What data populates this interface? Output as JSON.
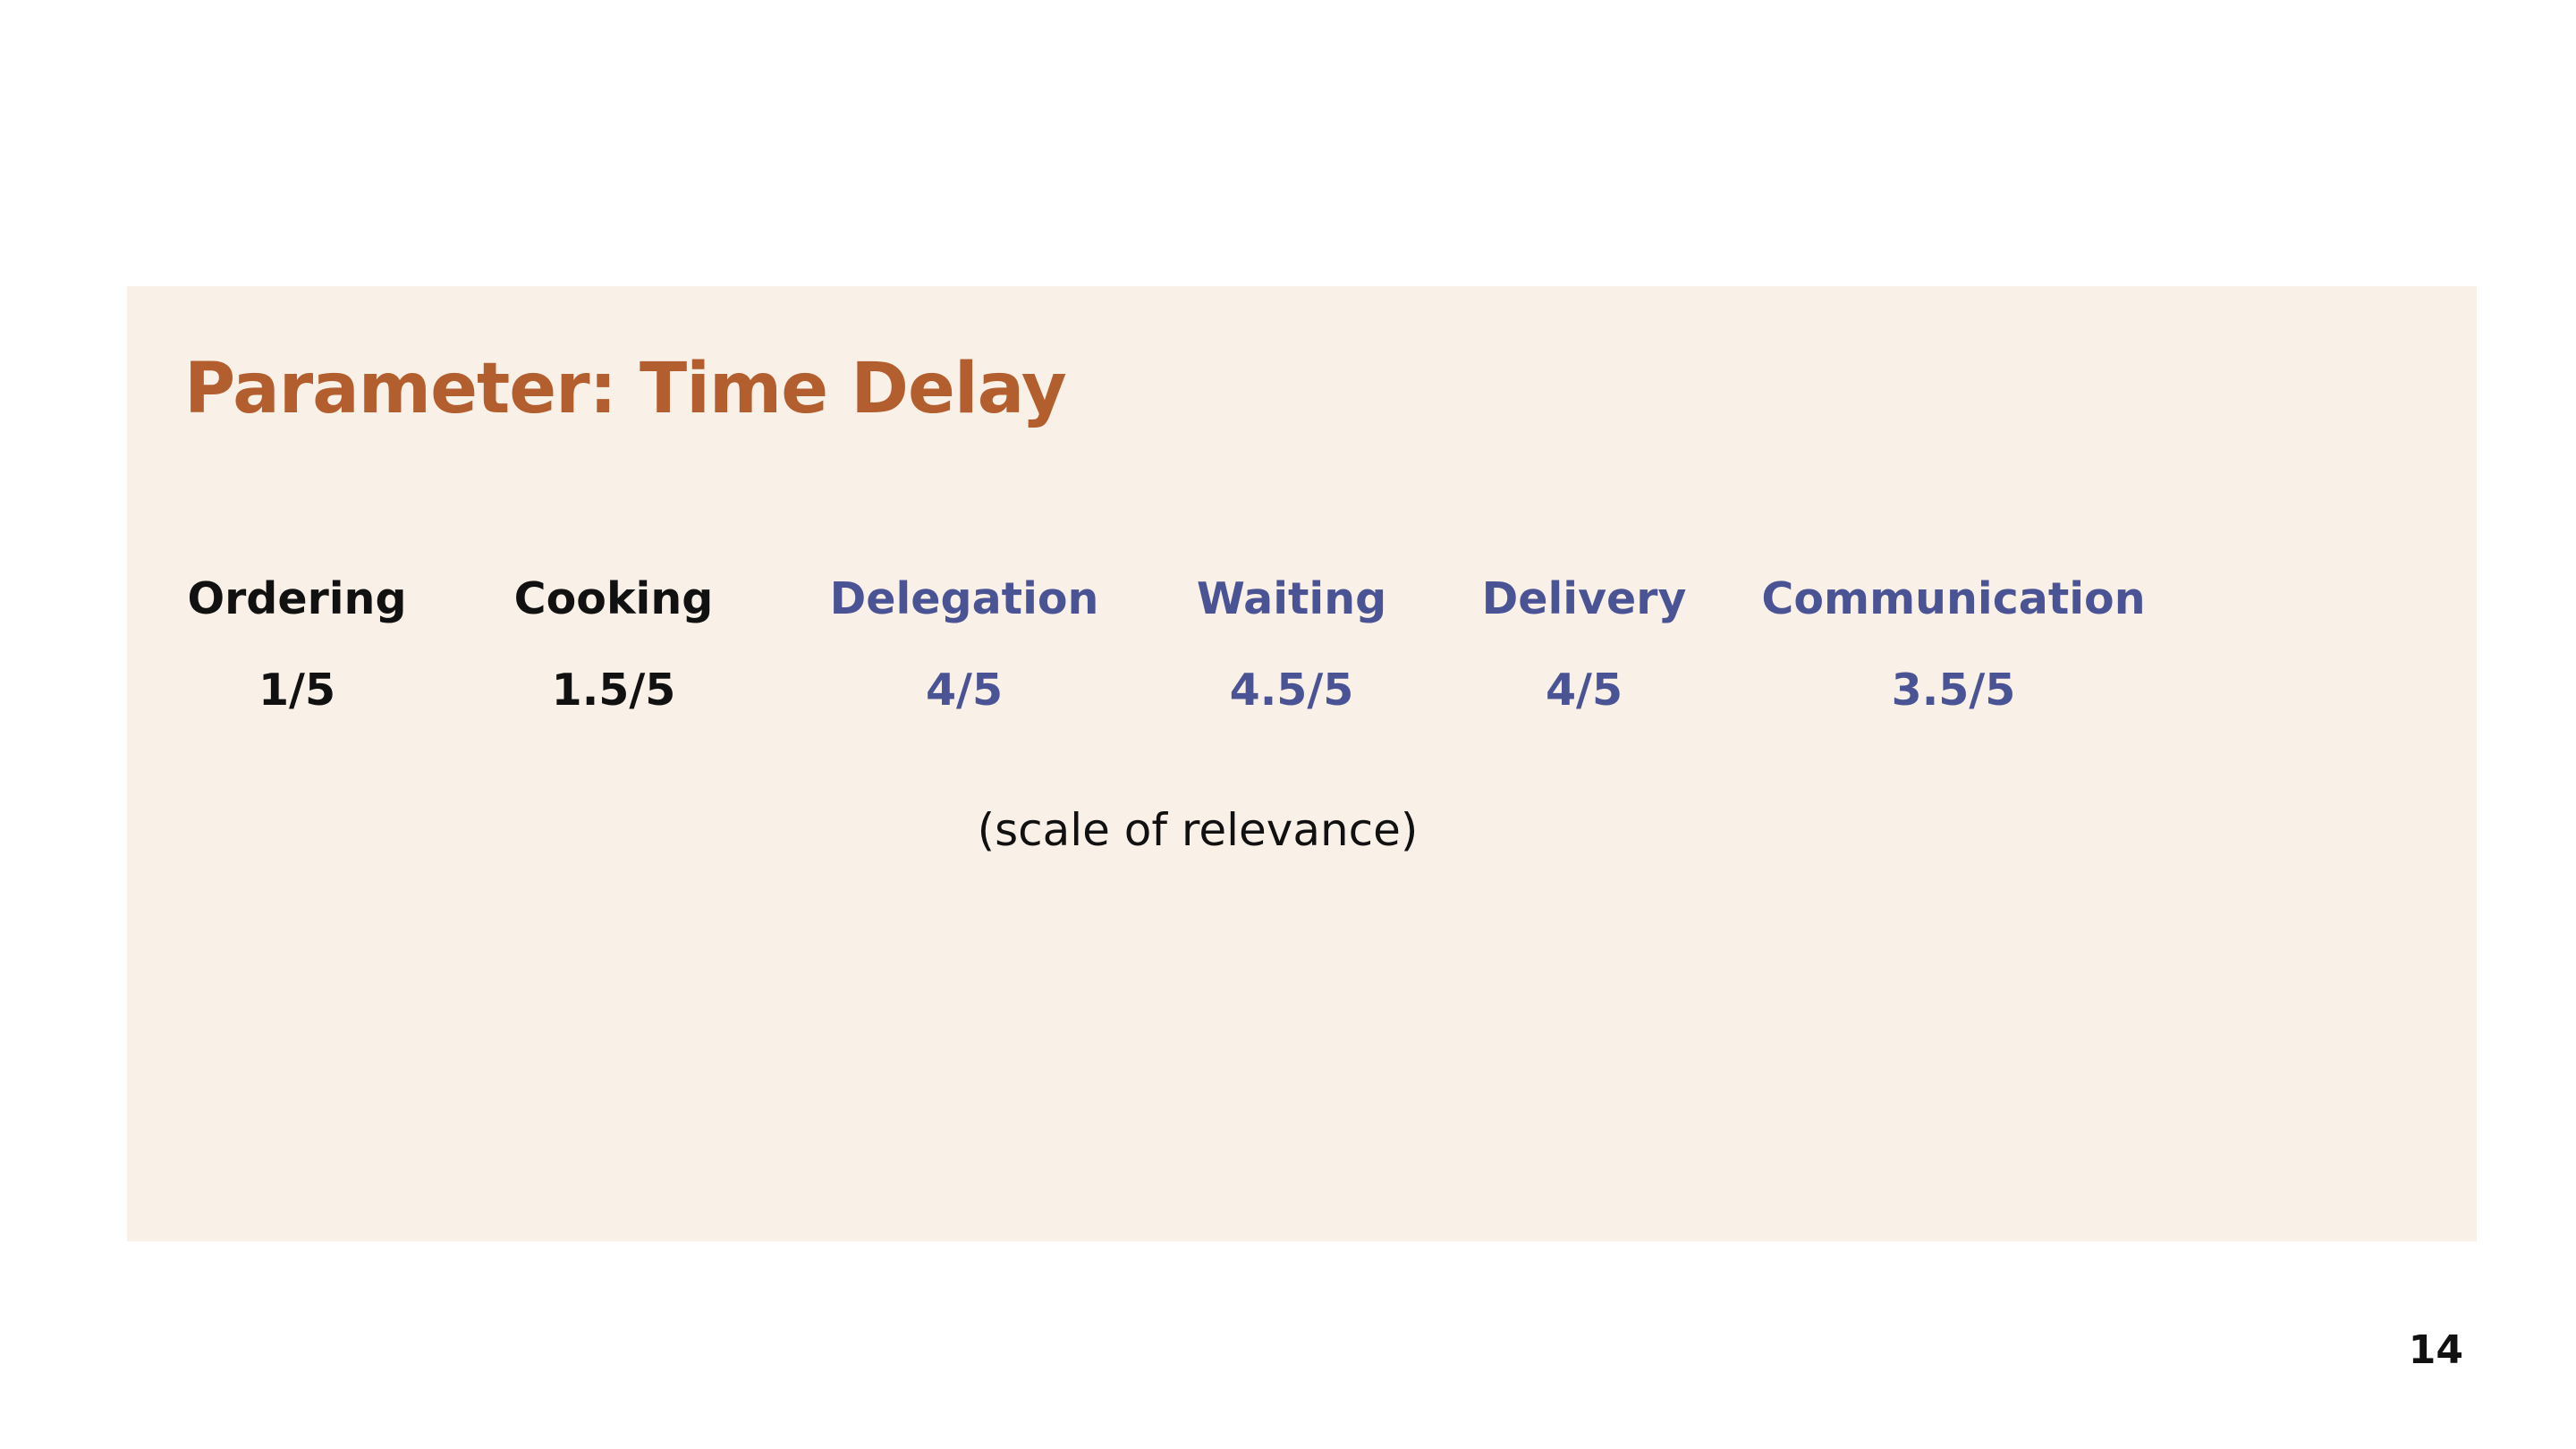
{
  "slide": {
    "title": "Parameter: Time Delay",
    "note": "(scale of relevance)",
    "page_number": "14"
  },
  "parameters": [
    {
      "label": "Ordering",
      "value": "1/5",
      "rating": 1,
      "scale_max": 5,
      "color": "#111111"
    },
    {
      "label": "Cooking",
      "value": "1.5/5",
      "rating": 1.5,
      "scale_max": 5,
      "color": "#111111"
    },
    {
      "label": "Delegation",
      "value": "4/5",
      "rating": 4,
      "scale_max": 5,
      "color": "#4a5394"
    },
    {
      "label": "Waiting",
      "value": "4.5/5",
      "rating": 4.5,
      "scale_max": 5,
      "color": "#4a5394"
    },
    {
      "label": "Delivery",
      "value": "4/5",
      "rating": 4,
      "scale_max": 5,
      "color": "#4a5394"
    },
    {
      "label": "Communication",
      "value": "3.5/5",
      "rating": 3.5,
      "scale_max": 5,
      "color": "#4a5394"
    }
  ],
  "colors": {
    "title": "#b35e2e",
    "panel_background": "#f9f0e8",
    "highlight": "#4a5394",
    "default_text": "#111111"
  }
}
